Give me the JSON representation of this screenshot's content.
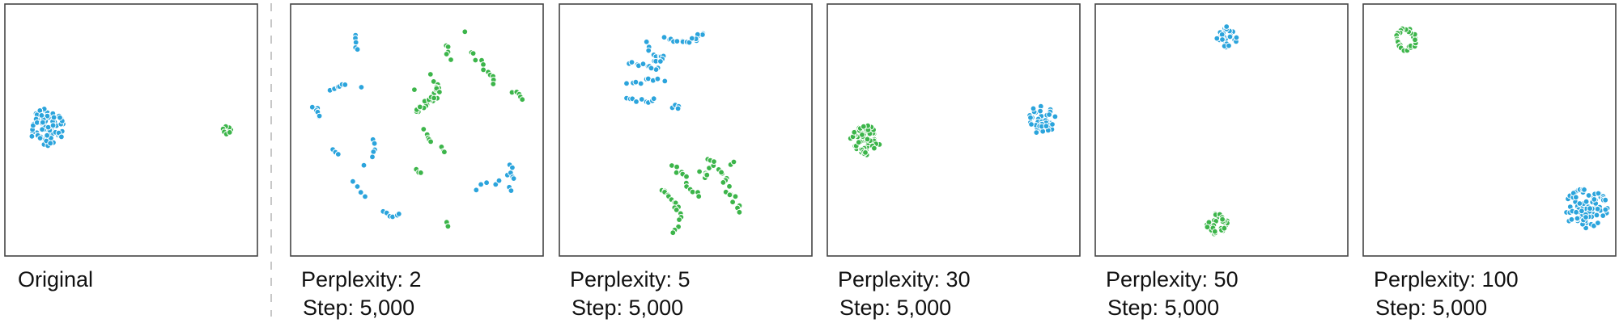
{
  "colors": {
    "class_a": "#2ba4dc",
    "class_b": "#3cb54a",
    "frame": "#444444",
    "divider": "#c8c8c8",
    "label": "#111111"
  },
  "chart_data": [
    {
      "type": "scatter",
      "title": "Original",
      "step": "",
      "xlim": [
        0,
        100
      ],
      "ylim": [
        0,
        100
      ],
      "grid": false,
      "clusters": [
        {
          "class": "class_a",
          "shape": "blob",
          "cx": 17,
          "cy": 51,
          "rx": 7.5,
          "ry": 7.5,
          "n": 70,
          "seed": 11
        },
        {
          "class": "class_b",
          "shape": "ring",
          "cx": 88,
          "cy": 50,
          "rx": 1.8,
          "ry": 1.6,
          "n": 7,
          "seed": 12
        }
      ]
    },
    {
      "type": "scatter",
      "title": "Perplexity: 2",
      "step": "Step: 5,000",
      "xlim": [
        0,
        100
      ],
      "ylim": [
        0,
        100
      ],
      "grid": false,
      "clusters": [
        {
          "class": "class_a",
          "shape": "path",
          "pts": [
            [
              26,
              88
            ],
            [
              26,
              85
            ]
          ],
          "n": 3,
          "jitter": 0.6,
          "seed": 21
        },
        {
          "class": "class_a",
          "shape": "path",
          "pts": [
            [
              26,
              83
            ],
            [
              26,
              82
            ]
          ],
          "n": 2,
          "jitter": 0.6,
          "seed": 22
        },
        {
          "class": "class_a",
          "shape": "path",
          "pts": [
            [
              16,
              66
            ],
            [
              20,
              67
            ],
            [
              22,
              68
            ]
          ],
          "n": 6,
          "jitter": 0.8,
          "seed": 23
        },
        {
          "class": "class_a",
          "shape": "point",
          "pts": [
            [
              28,
              67
            ]
          ],
          "n": 1,
          "jitter": 0,
          "seed": 24
        },
        {
          "class": "class_a",
          "shape": "path",
          "pts": [
            [
              9,
              59
            ],
            [
              11,
              58
            ],
            [
              12,
              55
            ]
          ],
          "n": 6,
          "jitter": 0.8,
          "seed": 25
        },
        {
          "class": "class_a",
          "shape": "path",
          "pts": [
            [
              33,
              46
            ],
            [
              33,
              42
            ],
            [
              32,
              40
            ]
          ],
          "n": 5,
          "jitter": 0.8,
          "seed": 26
        },
        {
          "class": "class_a",
          "shape": "path",
          "pts": [
            [
              17,
              42
            ],
            [
              19,
              40
            ]
          ],
          "n": 3,
          "jitter": 0.6,
          "seed": 27
        },
        {
          "class": "class_a",
          "shape": "point",
          "pts": [
            [
              29,
              36
            ]
          ],
          "n": 1,
          "jitter": 0,
          "seed": 28
        },
        {
          "class": "class_a",
          "shape": "path",
          "pts": [
            [
              25,
              29
            ],
            [
              27,
              26
            ],
            [
              29,
              24
            ]
          ],
          "n": 4,
          "jitter": 0.7,
          "seed": 29
        },
        {
          "class": "class_a",
          "shape": "path",
          "pts": [
            [
              37,
              17
            ],
            [
              41,
              16
            ],
            [
              43,
              17
            ]
          ],
          "n": 6,
          "jitter": 0.7,
          "seed": 30
        },
        {
          "class": "class_a",
          "shape": "path",
          "pts": [
            [
              74,
              27
            ],
            [
              80,
              29
            ],
            [
              85,
              31
            ],
            [
              88,
              36
            ],
            [
              87,
              25
            ]
          ],
          "n": 13,
          "jitter": 1.0,
          "seed": 31
        },
        {
          "class": "class_b",
          "shape": "path",
          "pts": [
            [
              62,
              84
            ],
            [
              62,
              80
            ],
            [
              63,
              78
            ]
          ],
          "n": 5,
          "jitter": 0.8,
          "seed": 32
        },
        {
          "class": "class_b",
          "shape": "point",
          "pts": [
            [
              69,
              89
            ]
          ],
          "n": 1,
          "jitter": 0,
          "seed": 33
        },
        {
          "class": "class_b",
          "shape": "path",
          "pts": [
            [
              72,
              81
            ],
            [
              75,
              77
            ],
            [
              78,
              73
            ],
            [
              80,
              70
            ],
            [
              81,
              68
            ]
          ],
          "n": 11,
          "jitter": 0.8,
          "seed": 34
        },
        {
          "class": "class_b",
          "shape": "path",
          "pts": [
            [
              88,
              65
            ],
            [
              90,
              64
            ],
            [
              92,
              62
            ]
          ],
          "n": 5,
          "jitter": 0.7,
          "seed": 35
        },
        {
          "class": "class_b",
          "shape": "path",
          "pts": [
            [
              56,
              72
            ],
            [
              58,
              66
            ],
            [
              57,
              62
            ],
            [
              53,
              58
            ],
            [
              49,
              58
            ],
            [
              56,
              62
            ],
            [
              58,
              68
            ],
            [
              60,
              66
            ]
          ],
          "n": 26,
          "jitter": 1.2,
          "seed": 36
        },
        {
          "class": "class_b",
          "shape": "point",
          "pts": [
            [
              49,
              66
            ]
          ],
          "n": 1,
          "jitter": 0,
          "seed": 37
        },
        {
          "class": "class_b",
          "shape": "path",
          "pts": [
            [
              53,
              50
            ],
            [
              54,
              48
            ],
            [
              55,
              45
            ]
          ],
          "n": 5,
          "jitter": 0.7,
          "seed": 38
        },
        {
          "class": "class_b",
          "shape": "path",
          "pts": [
            [
              60,
              43
            ],
            [
              61,
              41
            ]
          ],
          "n": 3,
          "jitter": 0.5,
          "seed": 39
        },
        {
          "class": "class_b",
          "shape": "path",
          "pts": [
            [
              50,
              34
            ],
            [
              52,
              33
            ]
          ],
          "n": 3,
          "jitter": 0.5,
          "seed": 40
        },
        {
          "class": "class_b",
          "shape": "path",
          "pts": [
            [
              62,
              13
            ],
            [
              62,
              12
            ]
          ],
          "n": 2,
          "jitter": 0.4,
          "seed": 41
        }
      ]
    },
    {
      "type": "scatter",
      "title": "Perplexity: 5",
      "step": "Step: 5,000",
      "xlim": [
        0,
        100
      ],
      "ylim": [
        0,
        100
      ],
      "grid": false,
      "clusters": [
        {
          "class": "class_a",
          "shape": "path",
          "pts": [
            [
              42,
              86
            ],
            [
              48,
              85
            ],
            [
              54,
              86
            ],
            [
              57,
              88
            ],
            [
              53,
              86
            ]
          ],
          "n": 18,
          "jitter": 1.0,
          "seed": 51
        },
        {
          "class": "class_a",
          "shape": "path",
          "pts": [
            [
              35,
              84
            ],
            [
              37,
              80
            ],
            [
              38,
              77
            ],
            [
              40,
              80
            ],
            [
              41,
              77
            ],
            [
              39,
              74
            ]
          ],
          "n": 14,
          "jitter": 1.0,
          "seed": 52
        },
        {
          "class": "class_a",
          "shape": "path",
          "pts": [
            [
              28,
              77
            ],
            [
              32,
              76
            ],
            [
              35,
              76
            ],
            [
              37,
              75
            ]
          ],
          "n": 8,
          "jitter": 0.8,
          "seed": 53
        },
        {
          "class": "class_a",
          "shape": "path",
          "pts": [
            [
              27,
              69
            ],
            [
              30,
              68
            ],
            [
              34,
              70
            ],
            [
              39,
              70
            ],
            [
              41,
              70
            ]
          ],
          "n": 9,
          "jitter": 0.8,
          "seed": 54
        },
        {
          "class": "class_a",
          "shape": "path",
          "pts": [
            [
              27,
              63
            ],
            [
              28,
              62
            ],
            [
              32,
              62
            ],
            [
              35,
              61
            ],
            [
              38,
              63
            ]
          ],
          "n": 9,
          "jitter": 0.8,
          "seed": 55
        },
        {
          "class": "class_a",
          "shape": "path",
          "pts": [
            [
              45,
              59
            ],
            [
              47,
              60
            ],
            [
              47,
              58
            ]
          ],
          "n": 4,
          "jitter": 0.6,
          "seed": 56
        },
        {
          "class": "class_b",
          "shape": "path",
          "pts": [
            [
              45,
              36
            ],
            [
              47,
              33
            ],
            [
              50,
              31
            ],
            [
              52,
              27
            ],
            [
              55,
              24
            ]
          ],
          "n": 12,
          "jitter": 1.0,
          "seed": 57
        },
        {
          "class": "class_b",
          "shape": "path",
          "pts": [
            [
              41,
              26
            ],
            [
              44,
              23
            ],
            [
              46,
              22
            ],
            [
              47,
              20
            ]
          ],
          "n": 9,
          "jitter": 0.9,
          "seed": 58
        },
        {
          "class": "class_b",
          "shape": "path",
          "pts": [
            [
              46,
              19
            ],
            [
              48,
              16
            ],
            [
              47,
              12
            ],
            [
              45,
              10
            ]
          ],
          "n": 8,
          "jitter": 0.8,
          "seed": 59
        },
        {
          "class": "class_b",
          "shape": "path",
          "pts": [
            [
              56,
              33
            ],
            [
              58,
              31
            ],
            [
              60,
              34
            ],
            [
              62,
              35
            ],
            [
              65,
              32
            ],
            [
              66,
              28
            ],
            [
              68,
              24
            ],
            [
              70,
              21
            ],
            [
              72,
              18
            ]
          ],
          "n": 22,
          "jitter": 1.1,
          "seed": 60
        },
        {
          "class": "class_b",
          "shape": "path",
          "pts": [
            [
              68,
              36
            ],
            [
              69,
              37
            ]
          ],
          "n": 2,
          "jitter": 0.4,
          "seed": 61
        },
        {
          "class": "class_b",
          "shape": "path",
          "pts": [
            [
              59,
              38
            ],
            [
              61,
              37
            ]
          ],
          "n": 3,
          "jitter": 0.5,
          "seed": 62
        }
      ]
    },
    {
      "type": "scatter",
      "title": "Perplexity: 30",
      "step": "Step: 5,000",
      "xlim": [
        0,
        100
      ],
      "ylim": [
        0,
        100
      ],
      "grid": false,
      "clusters": [
        {
          "class": "class_b",
          "shape": "blob",
          "cx": 15,
          "cy": 46,
          "rx": 6,
          "ry": 6,
          "n": 60,
          "seed": 71
        },
        {
          "class": "class_a",
          "shape": "blob",
          "cx": 85,
          "cy": 54,
          "rx": 5.5,
          "ry": 6,
          "n": 45,
          "seed": 72
        }
      ]
    },
    {
      "type": "scatter",
      "title": "Perplexity: 50",
      "step": "Step: 5,000",
      "xlim": [
        0,
        100
      ],
      "ylim": [
        0,
        100
      ],
      "grid": false,
      "clusters": [
        {
          "class": "class_a",
          "shape": "blob",
          "cx": 52,
          "cy": 87,
          "rx": 4.5,
          "ry": 4.2,
          "n": 30,
          "seed": 81
        },
        {
          "class": "class_b",
          "shape": "blob",
          "cx": 48,
          "cy": 13,
          "rx": 4.5,
          "ry": 4.5,
          "n": 30,
          "seed": 82
        }
      ]
    },
    {
      "type": "scatter",
      "title": "Perplexity: 100",
      "step": "Step: 5,000",
      "xlim": [
        0,
        100
      ],
      "ylim": [
        0,
        100
      ],
      "grid": false,
      "clusters": [
        {
          "class": "class_b",
          "shape": "ring",
          "cx": 17,
          "cy": 86,
          "rx": 4.2,
          "ry": 4.4,
          "n": 26,
          "seed": 91
        },
        {
          "class": "class_a",
          "shape": "blob",
          "cx": 88,
          "cy": 19,
          "rx": 9,
          "ry": 8,
          "n": 90,
          "seed": 92
        }
      ]
    }
  ]
}
